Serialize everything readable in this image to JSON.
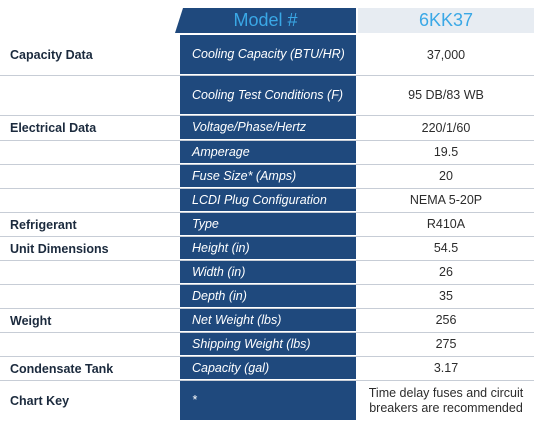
{
  "header": {
    "model_label": "Model #",
    "model_number": "6KK37"
  },
  "rows": [
    {
      "category": "Capacity Data",
      "property": "Cooling Capacity (BTU/HR)",
      "value": "37,000"
    },
    {
      "category": "",
      "property": "Cooling Test Conditions (F)",
      "value": "95 DB/83 WB"
    },
    {
      "category": "Electrical Data",
      "property": "Voltage/Phase/Hertz",
      "value": "220/1/60"
    },
    {
      "category": "",
      "property": "Amperage",
      "value": "19.5"
    },
    {
      "category": "",
      "property": "Fuse Size* (Amps)",
      "value": "20"
    },
    {
      "category": "",
      "property": "LCDI Plug Configuration",
      "value": "NEMA 5-20P"
    },
    {
      "category": "Refrigerant",
      "property": "Type",
      "value": "R410A"
    },
    {
      "category": "Unit Dimensions",
      "property": "Height (in)",
      "value": "54.5"
    },
    {
      "category": "",
      "property": "Width (in)",
      "value": "26"
    },
    {
      "category": "",
      "property": "Depth (in)",
      "value": "35"
    },
    {
      "category": "Weight",
      "property": "Net Weight (lbs)",
      "value": "256"
    },
    {
      "category": "",
      "property": "Shipping Weight (lbs)",
      "value": "275"
    },
    {
      "category": "Condensate Tank",
      "property": "Capacity (gal)",
      "value": "3.17"
    },
    {
      "category": "Chart Key",
      "property": "*",
      "value": "Time delay fuses and circuit breakers are recommended"
    }
  ],
  "colors": {
    "navy": "#1f497d",
    "accent_blue": "#3aa8e6",
    "header_value_bg": "#e7ecf2"
  }
}
